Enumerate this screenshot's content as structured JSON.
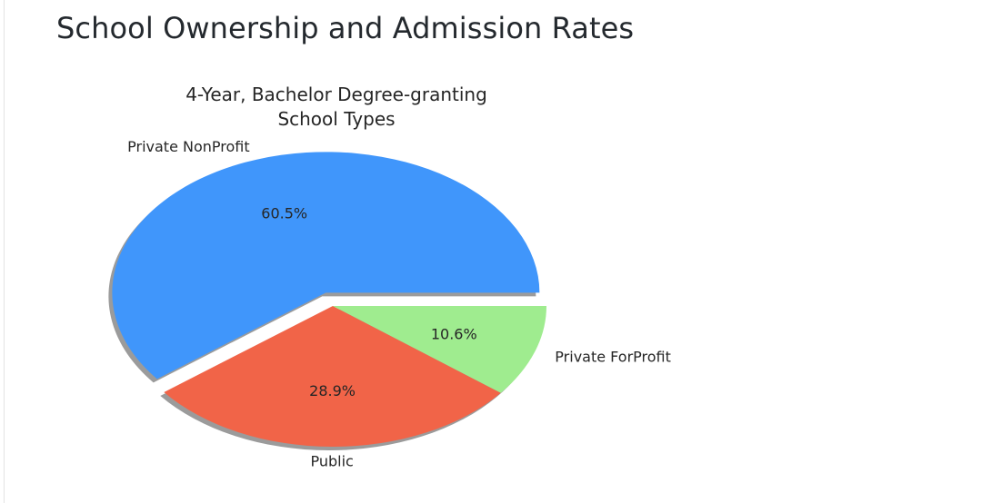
{
  "page": {
    "heading": "School Ownership and Admission Rates"
  },
  "chart_data": {
    "type": "pie",
    "title": "4-Year, Bachelor Degree-granting\nSchool Types",
    "title_lines": [
      "4-Year, Bachelor Degree-granting",
      "School Types"
    ],
    "categories": [
      "Private NonProfit",
      "Public",
      "Private ForProfit"
    ],
    "values": [
      60.5,
      28.9,
      10.6
    ],
    "value_labels": [
      "60.5%",
      "28.9%",
      "10.6%"
    ],
    "colors": [
      "#4096fb",
      "#f16448",
      "#9fec8f"
    ],
    "exploded": [
      true,
      false,
      false
    ],
    "shadow": true,
    "start_angle_deg": 0,
    "direction": "counterclockwise"
  }
}
